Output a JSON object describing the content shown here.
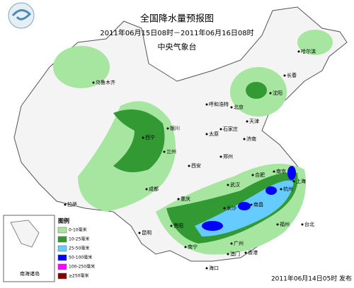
{
  "header": {
    "title": "全国降水量预报图",
    "subtitle": "2011年06月15日08时－2011年06月16日08时",
    "issuer": "中央气象台"
  },
  "legend": {
    "title": "图例",
    "items": [
      {
        "label": "0-10毫米",
        "color": "#a6e6a0"
      },
      {
        "label": "10-25毫米",
        "color": "#339933"
      },
      {
        "label": "25-50毫米",
        "color": "#66ccff"
      },
      {
        "label": "50-100毫米",
        "color": "#0000ff"
      },
      {
        "label": "100-250毫米",
        "color": "#ff00ff"
      },
      {
        "label": "≥250毫米",
        "color": "#800000"
      }
    ]
  },
  "inset": {
    "label": "南海诸岛"
  },
  "cities": [
    "乌鲁木齐",
    "哈尔滨",
    "长春",
    "沈阳",
    "北京",
    "天津",
    "呼和浩特",
    "石家庄",
    "太原",
    "济南",
    "银川",
    "西宁",
    "兰州",
    "郑州",
    "西安",
    "合肥",
    "南京",
    "上海",
    "杭州",
    "武汉",
    "成都",
    "重庆",
    "拉萨",
    "长沙",
    "南昌",
    "福州",
    "台北",
    "贵阳",
    "昆明",
    "南宁",
    "广州",
    "香港",
    "澳门",
    "海口"
  ],
  "footer": "2011年06月14日05时 发布"
}
